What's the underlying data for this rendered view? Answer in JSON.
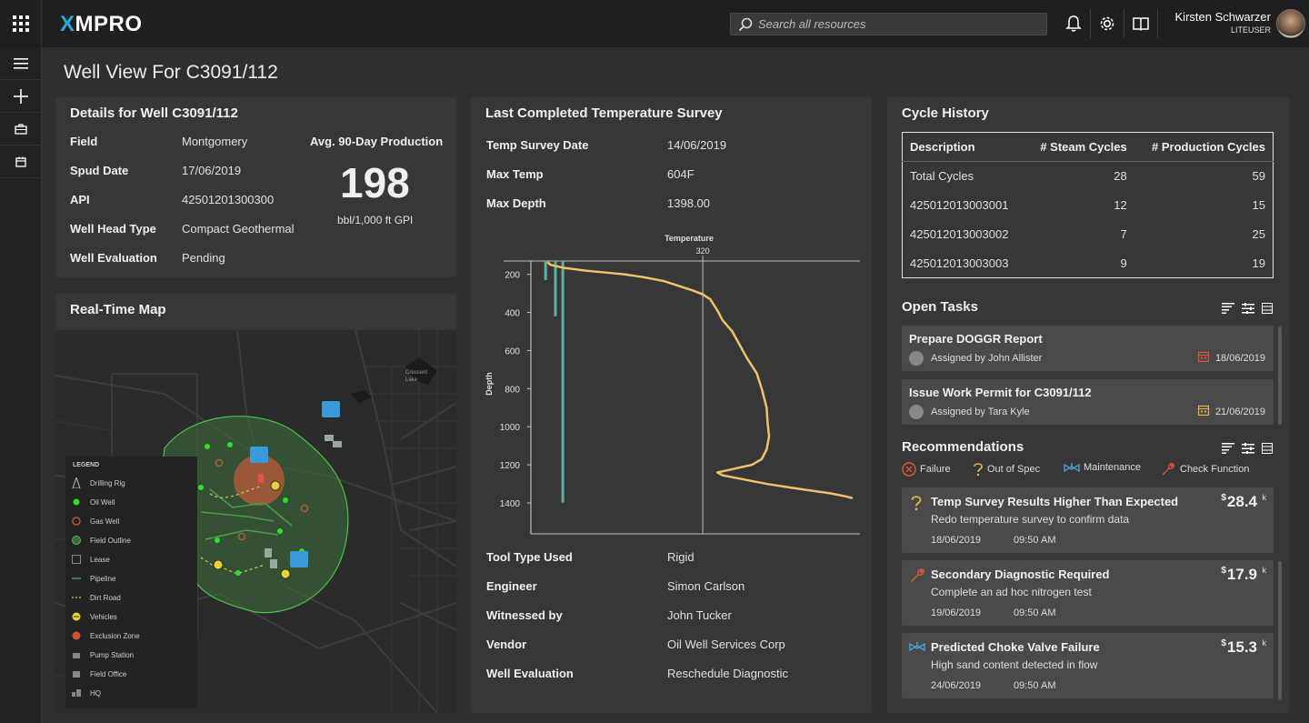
{
  "app": {
    "logo_x": "X",
    "logo_rest": "MPRO"
  },
  "search": {
    "placeholder": "Search all resources"
  },
  "user": {
    "name": "Kirsten Schwarzer",
    "role": "LITEUSER"
  },
  "page": {
    "title": "Well View For C3091/112"
  },
  "details": {
    "title": "Details for Well C3091/112",
    "rows": [
      {
        "label": "Field",
        "value": "Montgomery"
      },
      {
        "label": "Spud Date",
        "value": "17/06/2019"
      },
      {
        "label": "API",
        "value": "42501201300300"
      },
      {
        "label": "Well Head Type",
        "value": "Compact Geothermal"
      },
      {
        "label": "Well Evaluation",
        "value": "Pending"
      }
    ],
    "production_label": "Avg. 90-Day Production",
    "production_value": "198",
    "production_unit": "bbl/1,000 ft GPI"
  },
  "map": {
    "title": "Real-Time Map",
    "place_label_1": "Crescent",
    "place_label_2": "Lake",
    "legend_title": "LEGEND",
    "legend": [
      "Drilling Rig",
      "Oil Well",
      "Gas Well",
      "Field Outline",
      "Lease",
      "Pipeline",
      "Dirt Road",
      "Vehicles",
      "Exclusion Zone",
      "Pump Station",
      "Field Office",
      "HQ"
    ]
  },
  "survey": {
    "title": "Last Completed Temperature Survey",
    "top_rows": [
      {
        "label": "Temp Survey Date",
        "value": "14/06/2019"
      },
      {
        "label": "Max Temp",
        "value": "604F"
      },
      {
        "label": "Max Depth",
        "value": "1398.00"
      }
    ],
    "bottom_rows": [
      {
        "label": "Tool Type Used",
        "value": "Rigid"
      },
      {
        "label": "Engineer",
        "value": "Simon Carlson"
      },
      {
        "label": "Witnessed by",
        "value": "John Tucker"
      },
      {
        "label": "Vendor",
        "value": "Oil Well Services Corp"
      },
      {
        "label": "Well Evaluation",
        "value": "Reschedule Diagnostic"
      }
    ]
  },
  "chart_data": {
    "type": "line",
    "xlabel": "Temperature",
    "ylabel": "Depth",
    "y_ticks": [
      200,
      400,
      600,
      800,
      1000,
      1200,
      1400
    ],
    "ylim": [
      1400,
      130
    ],
    "xlim": [
      -30,
      640
    ],
    "reference_line": {
      "x": 320,
      "label": "320"
    },
    "series": [
      {
        "x": [
          4,
          10,
          35,
          80,
          120,
          160,
          200,
          240,
          270,
          300,
          320,
          335,
          345,
          352,
          360,
          380,
          395,
          410,
          430,
          440,
          450,
          452,
          455,
          450,
          440,
          420,
          385,
          350,
          360,
          400,
          450,
          500,
          540,
          580,
          610,
          625
        ],
        "y": [
          135,
          150,
          165,
          180,
          190,
          200,
          215,
          235,
          260,
          285,
          305,
          330,
          370,
          400,
          440,
          500,
          570,
          640,
          720,
          800,
          900,
          980,
          1050,
          1120,
          1170,
          1200,
          1220,
          1240,
          1255,
          1275,
          1300,
          1320,
          1335,
          1350,
          1365,
          1375
        ]
      }
    ],
    "depth_bars": [
      {
        "x": 0,
        "y_top": 130,
        "y_bottom": 230
      },
      {
        "x": 20,
        "y_top": 130,
        "y_bottom": 420
      },
      {
        "x": 35,
        "y_top": 130,
        "y_bottom": 1398
      }
    ]
  },
  "cycle": {
    "title": "Cycle History",
    "headers": [
      "Description",
      "# Steam Cycles",
      "# Production Cycles"
    ],
    "rows": [
      [
        "Total Cycles",
        "28",
        "59"
      ],
      [
        "425012013003001",
        "12",
        "15"
      ],
      [
        "425012013003002",
        "7",
        "25"
      ],
      [
        "425012013003003",
        "9",
        "19"
      ]
    ]
  },
  "tasks": {
    "title": "Open Tasks",
    "items": [
      {
        "title": "Prepare DOGGR Report",
        "by": "Assigned by John Allister",
        "date": "18/06/2019",
        "cal_color": "#e0553a"
      },
      {
        "title": "Issue Work Permit for C3091/112",
        "by": "Assigned by Tara Kyle",
        "date": "21/06/2019",
        "cal_color": "#e8b84a"
      }
    ]
  },
  "recs": {
    "title": "Recommendations",
    "legend": [
      {
        "label": "Failure",
        "icon": "x-circle-icon",
        "color": "#e0553a"
      },
      {
        "label": "Out of Spec",
        "icon": "question-icon",
        "color": "#e8b84a"
      },
      {
        "label": "Maintenance",
        "icon": "valve-icon",
        "color": "#4aa8e0"
      },
      {
        "label": "Check Function",
        "icon": "wrench-icon",
        "color": "#e0553a"
      }
    ],
    "items": [
      {
        "title": "Temp Survey Results Higher Than Expected",
        "sub": "Redo temperature survey to confirm data",
        "date": "18/06/2019",
        "time": "09:50 AM",
        "cur": "$",
        "cost": "28.4",
        "k": "k",
        "icon": "question-icon"
      },
      {
        "title": "Secondary Diagnostic Required",
        "sub": "Complete an ad hoc nitrogen test",
        "date": "19/06/2019",
        "time": "09:50 AM",
        "cur": "$",
        "cost": "17.9",
        "k": "k",
        "icon": "wrench-icon"
      },
      {
        "title": "Predicted Choke Valve Failure",
        "sub": "High sand content detected in flow",
        "date": "24/06/2019",
        "time": "09:50 AM",
        "cur": "$",
        "cost": "15.3",
        "k": "k",
        "icon": "valve-icon"
      }
    ]
  }
}
